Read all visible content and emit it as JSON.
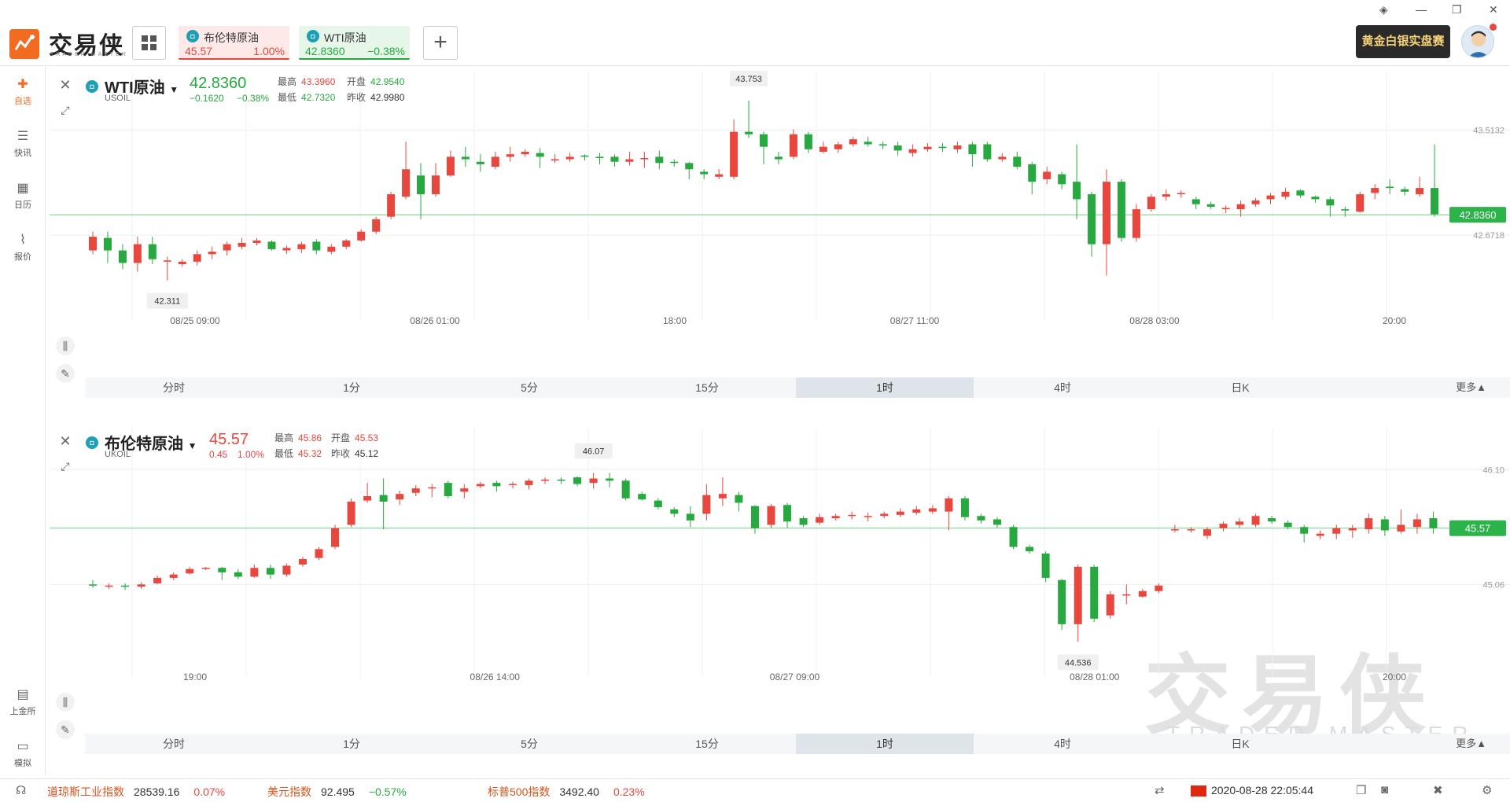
{
  "app": {
    "logo_text": "交易侠",
    "logo_sub": "TRADER MASTER"
  },
  "tabs": [
    {
      "name": "布伦特原油",
      "price": "45.57",
      "change": "1.00%",
      "dir": "up"
    },
    {
      "name": "WTI原油",
      "price": "42.8360",
      "change": "−0.38%",
      "dir": "down"
    }
  ],
  "add_tab_label": "+",
  "promo_text": "黄金白银实盘赛",
  "sidebar": {
    "items": [
      {
        "label": "自选",
        "icon": "plus-square-icon",
        "glyph": "✚"
      },
      {
        "label": "快讯",
        "icon": "news-icon",
        "glyph": "☰"
      },
      {
        "label": "日历",
        "icon": "calendar-icon",
        "glyph": "▦"
      },
      {
        "label": "报价",
        "icon": "quote-chart-icon",
        "glyph": "⌇"
      }
    ],
    "bottom": [
      {
        "label": "上金所",
        "icon": "exchange-icon",
        "glyph": "▤"
      },
      {
        "label": "模拟",
        "icon": "wallet-icon",
        "glyph": "▭"
      }
    ]
  },
  "colors": {
    "up": "#e8473e",
    "down": "#27a940",
    "last_line": "#6fce7e",
    "accent": "#f26b21"
  },
  "periods": [
    "分时",
    "1分",
    "5分",
    "15分",
    "1时",
    "4时",
    "日K"
  ],
  "selected_period": "1时",
  "more_label": "更多▲",
  "watermark": {
    "text": "交易侠",
    "sub": "TRADER MASTER"
  },
  "charts": [
    {
      "name": "WTI原油",
      "code": "USOIL",
      "price": "42.8360",
      "change": "−0.1620",
      "change_pct": "−0.38%",
      "dir": "down",
      "stats": {
        "high_label": "最高",
        "high": "43.3960",
        "low_label": "最低",
        "low": "42.7320",
        "open_label": "开盘",
        "open": "42.9540",
        "prev_label": "昨收",
        "prev": "42.9980"
      },
      "last_label": "42.8360"
    },
    {
      "name": "布伦特原油",
      "code": "UKOIL",
      "price": "45.57",
      "change": "0.45",
      "change_pct": "1.00%",
      "dir": "up",
      "stats": {
        "high_label": "最高",
        "high": "45.86",
        "low_label": "最低",
        "low": "45.32",
        "open_label": "开盘",
        "open": "45.53",
        "prev_label": "昨收",
        "prev": "45.12"
      },
      "last_label": "45.57"
    }
  ],
  "chart_data": [
    {
      "type": "candlestick",
      "title": "WTI原油 USOIL 1时",
      "x_ticks": [
        "08/25 09:00",
        "08/26 01:00",
        "18:00",
        "08/27 11:00",
        "08/28 03:00",
        "20:00"
      ],
      "y_ticks": [
        "43.5132",
        "42.6718"
      ],
      "ylim": [
        42.1,
        43.85
      ],
      "last": 42.836,
      "max_label": "43.753",
      "min_label": "42.311",
      "candles": [
        [
          42.55,
          42.66,
          42.7,
          42.52
        ],
        [
          42.65,
          42.55,
          42.7,
          42.45
        ],
        [
          42.55,
          42.45,
          42.6,
          42.4
        ],
        [
          42.45,
          42.6,
          42.66,
          42.38
        ],
        [
          42.6,
          42.48,
          42.66,
          42.44
        ],
        [
          42.46,
          42.47,
          42.5,
          42.31
        ],
        [
          42.44,
          42.46,
          42.48,
          42.42
        ],
        [
          42.46,
          42.52,
          42.55,
          42.43
        ],
        [
          42.52,
          42.54,
          42.58,
          42.48
        ],
        [
          42.55,
          42.6,
          42.62,
          42.51
        ],
        [
          42.58,
          42.61,
          42.65,
          42.56
        ],
        [
          42.61,
          42.63,
          42.65,
          42.59
        ],
        [
          42.62,
          42.56,
          42.63,
          42.55
        ],
        [
          42.55,
          42.57,
          42.59,
          42.52
        ],
        [
          42.56,
          42.6,
          42.62,
          42.53
        ],
        [
          42.62,
          42.55,
          42.64,
          42.52
        ],
        [
          42.54,
          42.58,
          42.6,
          42.52
        ],
        [
          42.58,
          42.63,
          42.64,
          42.56
        ],
        [
          42.63,
          42.7,
          42.72,
          42.62
        ],
        [
          42.7,
          42.8,
          42.82,
          42.68
        ],
        [
          42.82,
          43.0,
          43.02,
          42.8
        ],
        [
          42.98,
          43.2,
          43.42,
          42.96
        ],
        [
          43.15,
          43.0,
          43.25,
          42.8
        ],
        [
          43.0,
          43.15,
          43.25,
          42.98
        ],
        [
          43.15,
          43.3,
          43.35,
          43.14
        ],
        [
          43.3,
          43.28,
          43.38,
          43.22
        ],
        [
          43.26,
          43.24,
          43.32,
          43.18
        ],
        [
          43.22,
          43.3,
          43.34,
          43.2
        ],
        [
          43.3,
          43.32,
          43.38,
          43.26
        ],
        [
          43.32,
          43.34,
          43.36,
          43.3
        ],
        [
          43.33,
          43.3,
          43.37,
          43.21
        ],
        [
          43.27,
          43.28,
          43.32,
          43.25
        ],
        [
          43.28,
          43.3,
          43.33,
          43.26
        ],
        [
          43.31,
          43.3,
          43.32,
          43.27
        ],
        [
          43.3,
          43.29,
          43.33,
          43.24
        ],
        [
          43.3,
          43.26,
          43.32,
          43.22
        ],
        [
          43.26,
          43.28,
          43.34,
          43.23
        ],
        [
          43.28,
          43.29,
          43.34,
          43.21
        ],
        [
          43.3,
          43.25,
          43.35,
          43.2
        ],
        [
          43.26,
          43.25,
          43.28,
          43.22
        ],
        [
          43.25,
          43.2,
          43.26,
          43.12
        ],
        [
          43.18,
          43.16,
          43.2,
          43.12
        ],
        [
          43.14,
          43.16,
          43.2,
          43.12
        ],
        [
          43.14,
          43.5,
          43.6,
          43.12
        ],
        [
          43.5,
          43.48,
          43.75,
          43.45
        ],
        [
          43.48,
          43.38,
          43.5,
          43.24
        ],
        [
          43.3,
          43.28,
          43.34,
          43.24
        ],
        [
          43.3,
          43.48,
          43.52,
          43.28
        ],
        [
          43.48,
          43.36,
          43.5,
          43.33
        ],
        [
          43.34,
          43.38,
          43.42,
          43.33
        ],
        [
          43.36,
          43.4,
          43.42,
          43.33
        ],
        [
          43.4,
          43.44,
          43.46,
          43.38
        ],
        [
          43.42,
          43.4,
          43.46,
          43.38
        ],
        [
          43.4,
          43.39,
          43.42,
          43.36
        ],
        [
          43.39,
          43.35,
          43.42,
          43.31
        ],
        [
          43.33,
          43.36,
          43.4,
          43.3
        ],
        [
          43.36,
          43.38,
          43.41,
          43.34
        ],
        [
          43.38,
          43.37,
          43.41,
          43.34
        ],
        [
          43.36,
          43.39,
          43.42,
          43.33
        ],
        [
          43.4,
          43.32,
          43.42,
          43.22
        ],
        [
          43.4,
          43.28,
          43.42,
          43.26
        ],
        [
          43.28,
          43.3,
          43.33,
          43.26
        ],
        [
          43.3,
          43.22,
          43.34,
          43.2
        ],
        [
          43.24,
          43.1,
          43.26,
          43.0
        ],
        [
          43.12,
          43.18,
          43.22,
          43.08
        ],
        [
          43.16,
          43.08,
          43.18,
          43.04
        ],
        [
          43.1,
          42.96,
          43.4,
          42.8
        ],
        [
          43.0,
          42.6,
          43.02,
          42.5
        ],
        [
          42.6,
          43.1,
          43.2,
          42.35
        ],
        [
          43.1,
          42.65,
          43.12,
          42.62
        ],
        [
          42.65,
          42.88,
          42.92,
          42.62
        ],
        [
          42.88,
          42.98,
          43.0,
          42.86
        ],
        [
          42.98,
          43.0,
          43.04,
          42.95
        ],
        [
          43.0,
          43.01,
          43.03,
          42.97
        ],
        [
          42.96,
          42.92,
          42.98,
          42.88
        ],
        [
          42.92,
          42.9,
          42.94,
          42.88
        ],
        [
          42.88,
          42.89,
          42.91,
          42.85
        ],
        [
          42.88,
          42.92,
          42.95,
          42.82
        ],
        [
          42.92,
          42.95,
          42.97,
          42.9
        ],
        [
          42.96,
          42.99,
          43.01,
          42.92
        ],
        [
          42.98,
          43.02,
          43.05,
          42.96
        ],
        [
          43.03,
          42.99,
          43.04,
          42.97
        ],
        [
          42.98,
          42.96,
          42.99,
          42.93
        ],
        [
          42.96,
          42.91,
          42.98,
          42.82
        ],
        [
          42.88,
          42.87,
          42.9,
          42.82
        ],
        [
          42.86,
          43.0,
          43.02,
          42.85
        ],
        [
          43.01,
          43.05,
          43.08,
          42.96
        ],
        [
          43.06,
          43.05,
          43.12,
          43.0
        ],
        [
          43.04,
          43.02,
          43.06,
          42.99
        ],
        [
          43.0,
          43.05,
          43.14,
          42.98
        ],
        [
          43.05,
          42.84,
          43.4,
          42.82
        ]
      ]
    },
    {
      "type": "candlestick",
      "title": "布伦特原油 UKOIL 1时",
      "x_ticks": [
        "19:00",
        "08/26 14:00",
        "08/27 09:00",
        "08/28 01:00",
        "20:00"
      ],
      "y_ticks": [
        "46.10",
        "45.06"
      ],
      "ylim": [
        44.35,
        46.33
      ],
      "last": 45.57,
      "max_label": "46.07",
      "min_label": "44.536",
      "candles": [
        [
          45.06,
          45.05,
          45.1,
          45.03
        ],
        [
          45.04,
          45.05,
          45.07,
          45.02
        ],
        [
          45.05,
          45.04,
          45.07,
          45.01
        ],
        [
          45.04,
          45.06,
          45.08,
          45.02
        ],
        [
          45.07,
          45.12,
          45.14,
          45.06
        ],
        [
          45.12,
          45.15,
          45.17,
          45.1
        ],
        [
          45.16,
          45.2,
          45.22,
          45.15
        ],
        [
          45.2,
          45.21,
          45.22,
          45.19
        ],
        [
          45.21,
          45.17,
          45.22,
          45.1
        ],
        [
          45.17,
          45.13,
          45.2,
          45.11
        ],
        [
          45.13,
          45.21,
          45.24,
          45.12
        ],
        [
          45.21,
          45.15,
          45.24,
          45.11
        ],
        [
          45.15,
          45.23,
          45.25,
          45.13
        ],
        [
          45.24,
          45.29,
          45.31,
          45.22
        ],
        [
          45.3,
          45.38,
          45.4,
          45.28
        ],
        [
          45.4,
          45.57,
          45.6,
          45.38
        ],
        [
          45.6,
          45.81,
          45.84,
          45.58
        ],
        [
          45.82,
          45.86,
          45.98,
          45.8
        ],
        [
          45.87,
          45.81,
          46.02,
          45.56
        ],
        [
          45.83,
          45.88,
          45.91,
          45.78
        ],
        [
          45.89,
          45.93,
          45.96,
          45.86
        ],
        [
          45.94,
          45.94,
          45.97,
          45.85
        ],
        [
          45.98,
          45.86,
          46.0,
          45.84
        ],
        [
          45.9,
          45.93,
          45.97,
          45.84
        ],
        [
          45.95,
          45.97,
          45.99,
          45.93
        ],
        [
          45.98,
          45.95,
          46.0,
          45.9
        ],
        [
          45.96,
          45.97,
          45.99,
          45.93
        ],
        [
          45.96,
          46.0,
          46.02,
          45.92
        ],
        [
          46.0,
          46.01,
          46.03,
          45.97
        ],
        [
          46.01,
          46.0,
          46.03,
          45.97
        ],
        [
          46.03,
          45.97,
          46.04,
          45.95
        ],
        [
          45.98,
          46.02,
          46.07,
          45.93
        ],
        [
          46.02,
          46.0,
          46.07,
          45.94
        ],
        [
          46.0,
          45.84,
          46.02,
          45.82
        ],
        [
          45.88,
          45.83,
          45.9,
          45.82
        ],
        [
          45.82,
          45.76,
          45.84,
          45.74
        ],
        [
          45.74,
          45.7,
          45.76,
          45.67
        ],
        [
          45.7,
          45.64,
          45.77,
          45.58
        ],
        [
          45.7,
          45.87,
          45.97,
          45.64
        ],
        [
          45.84,
          45.88,
          46.03,
          45.77
        ],
        [
          45.87,
          45.8,
          45.9,
          45.72
        ],
        [
          45.77,
          45.57,
          45.78,
          45.52
        ],
        [
          45.6,
          45.77,
          45.79,
          45.57
        ],
        [
          45.78,
          45.63,
          45.8,
          45.57
        ],
        [
          45.66,
          45.6,
          45.68,
          45.58
        ],
        [
          45.62,
          45.67,
          45.7,
          45.6
        ],
        [
          45.66,
          45.68,
          45.7,
          45.64
        ],
        [
          45.68,
          45.69,
          45.72,
          45.65
        ],
        [
          45.67,
          45.68,
          45.71,
          45.63
        ],
        [
          45.68,
          45.7,
          45.72,
          45.66
        ],
        [
          45.69,
          45.72,
          45.75,
          45.67
        ],
        [
          45.71,
          45.74,
          45.77,
          45.69
        ],
        [
          45.72,
          45.75,
          45.78,
          45.7
        ],
        [
          45.72,
          45.84,
          45.86,
          45.55
        ],
        [
          45.84,
          45.67,
          45.86,
          45.64
        ],
        [
          45.68,
          45.64,
          45.7,
          45.61
        ],
        [
          45.65,
          45.6,
          45.67,
          45.57
        ],
        [
          45.58,
          45.4,
          45.6,
          45.38
        ],
        [
          45.4,
          45.36,
          45.42,
          45.34
        ],
        [
          45.34,
          45.12,
          45.36,
          45.08
        ],
        [
          45.1,
          44.7,
          45.11,
          44.65
        ],
        [
          44.7,
          45.22,
          45.24,
          44.54
        ],
        [
          45.22,
          44.75,
          45.24,
          44.72
        ],
        [
          44.78,
          44.97,
          45.0,
          44.75
        ],
        [
          44.97,
          44.97,
          45.06,
          44.88
        ],
        [
          44.95,
          45.0,
          45.02,
          44.94
        ],
        [
          45.0,
          45.05,
          45.07,
          44.98
        ],
        [
          45.55,
          45.56,
          45.6,
          45.53
        ],
        [
          45.55,
          45.56,
          45.58,
          45.53
        ],
        [
          45.5,
          45.56,
          45.58,
          45.47
        ],
        [
          45.57,
          45.61,
          45.63,
          45.54
        ],
        [
          45.6,
          45.63,
          45.66,
          45.57
        ],
        [
          45.6,
          45.68,
          45.7,
          45.58
        ],
        [
          45.66,
          45.63,
          45.68,
          45.61
        ],
        [
          45.62,
          45.58,
          45.64,
          45.56
        ],
        [
          45.58,
          45.52,
          45.6,
          45.44
        ],
        [
          45.5,
          45.52,
          45.55,
          45.47
        ],
        [
          45.52,
          45.57,
          45.6,
          45.47
        ],
        [
          45.55,
          45.57,
          45.6,
          45.48
        ],
        [
          45.56,
          45.66,
          45.7,
          45.52
        ],
        [
          45.65,
          45.55,
          45.68,
          45.5
        ],
        [
          45.54,
          45.6,
          45.74,
          45.52
        ],
        [
          45.58,
          45.65,
          45.7,
          45.52
        ],
        [
          45.66,
          45.57,
          45.72,
          45.52
        ]
      ]
    }
  ],
  "status": {
    "indices": [
      {
        "name": "道琼斯工业指数",
        "value": "28539.16",
        "change": "0.07%"
      },
      {
        "name": "美元指数",
        "value": "92.495",
        "change": "−0.57%"
      },
      {
        "name": "标普500指数",
        "value": "3492.40",
        "change": "0.23%"
      }
    ],
    "datetime": "2020-08-28 22:05:44"
  }
}
